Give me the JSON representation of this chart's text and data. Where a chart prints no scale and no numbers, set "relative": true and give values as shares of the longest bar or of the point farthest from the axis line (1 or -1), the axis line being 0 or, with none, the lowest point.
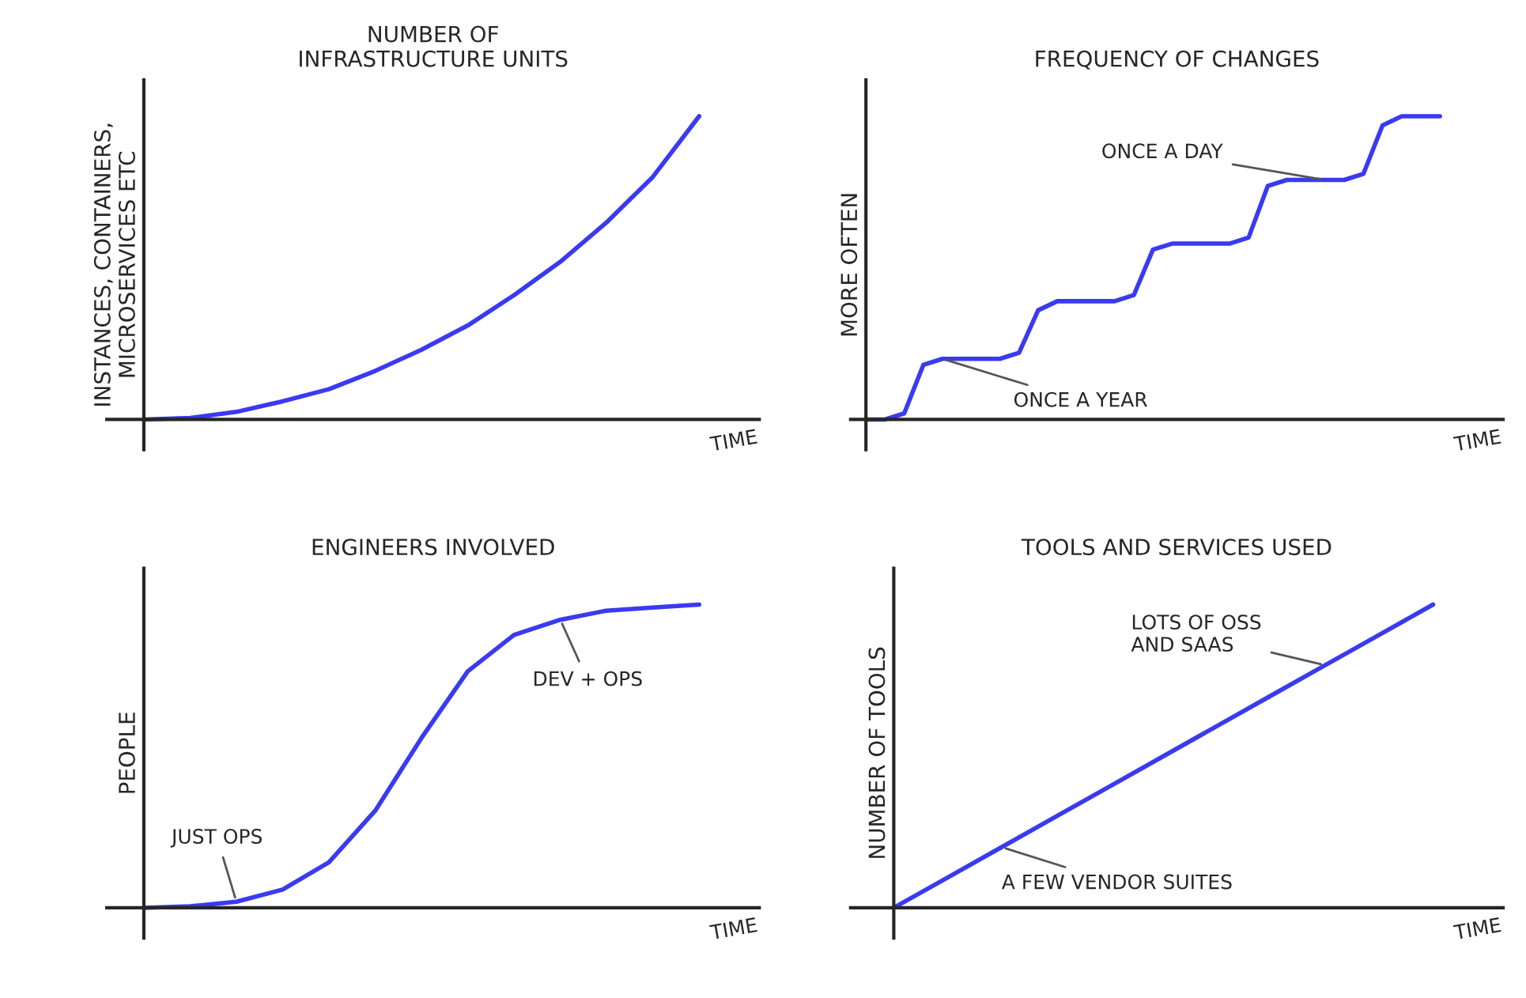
{
  "chart_data": [
    {
      "type": "line",
      "title": "NUMBER OF\nINFRASTRUCTURE UNITS",
      "xlabel": "TIME",
      "ylabel": "INSTANCES, CONTAINERS,\nMICROSERVICES ETC",
      "relative": true,
      "tick_labels": false,
      "line_style": "solid",
      "categories": [
        null,
        null,
        null,
        null,
        null,
        null,
        null,
        null,
        null,
        null,
        null,
        null,
        null,
        null
      ],
      "series": [
        {
          "color": "#3a3af0",
          "values": [
            0,
            0.005,
            0.025,
            0.06,
            0.1,
            0.16,
            0.23,
            0.31,
            0.41,
            0.52,
            0.65,
            0.8,
            1.0,
            null
          ]
        }
      ]
    },
    {
      "type": "line",
      "title": "FREQUENCY OF CHANGES",
      "xlabel": "TIME",
      "ylabel": "MORE OFTEN",
      "relative": true,
      "tick_labels": false,
      "line_style": "solid",
      "categories": [
        null,
        null,
        null,
        null,
        null,
        null,
        null,
        null,
        null,
        null,
        null,
        null,
        null,
        null,
        null,
        null,
        null,
        null,
        null,
        null,
        null,
        null,
        null,
        null,
        null,
        null,
        null,
        null,
        null,
        null,
        null,
        null,
        null,
        null
      ],
      "series": [
        {
          "color": "#3a3af0",
          "values": [
            0,
            0,
            0.02,
            0.18,
            0.2,
            0.2,
            0.2,
            0.2,
            0.22,
            0.36,
            0.39,
            0.39,
            0.39,
            0.39,
            0.41,
            0.56,
            0.58,
            0.58,
            0.58,
            0.58,
            0.6,
            0.77,
            0.79,
            0.79,
            0.79,
            0.79,
            0.81,
            0.97,
            1.0,
            1.0,
            1.0,
            null,
            null,
            null
          ]
        }
      ],
      "annotations": [
        "ONCE A DAY",
        "ONCE A YEAR"
      ]
    },
    {
      "type": "line",
      "title": "ENGINEERS INVOLVED",
      "xlabel": "TIME",
      "ylabel": "PEOPLE",
      "relative": true,
      "tick_labels": false,
      "line_style": "solid",
      "categories": [
        null,
        null,
        null,
        null,
        null,
        null,
        null,
        null,
        null,
        null,
        null,
        null,
        null,
        null
      ],
      "series": [
        {
          "color": "#3a3af0",
          "values": [
            0,
            0.005,
            0.02,
            0.06,
            0.15,
            0.32,
            0.56,
            0.78,
            0.9,
            0.95,
            0.98,
            0.99,
            1.0,
            null
          ]
        }
      ],
      "annotations": [
        "JUST OPS",
        "DEV + OPS"
      ]
    },
    {
      "type": "line",
      "title": "TOOLS AND SERVICES USED",
      "xlabel": "TIME",
      "ylabel": "NUMBER OF TOOLS",
      "relative": true,
      "tick_labels": false,
      "line_style": "solid",
      "categories": [
        null,
        null,
        null,
        null,
        null,
        null,
        null,
        null,
        null,
        null,
        null,
        null
      ],
      "series": [
        {
          "color": "#3a3af0",
          "values": [
            0,
            0.1,
            0.2,
            0.3,
            0.4,
            0.5,
            0.6,
            0.7,
            0.8,
            0.9,
            1.0,
            null
          ]
        }
      ],
      "annotations": [
        "LOTS OF OSS\nAND SAAS",
        "A FEW VENDOR SUITES"
      ]
    }
  ]
}
